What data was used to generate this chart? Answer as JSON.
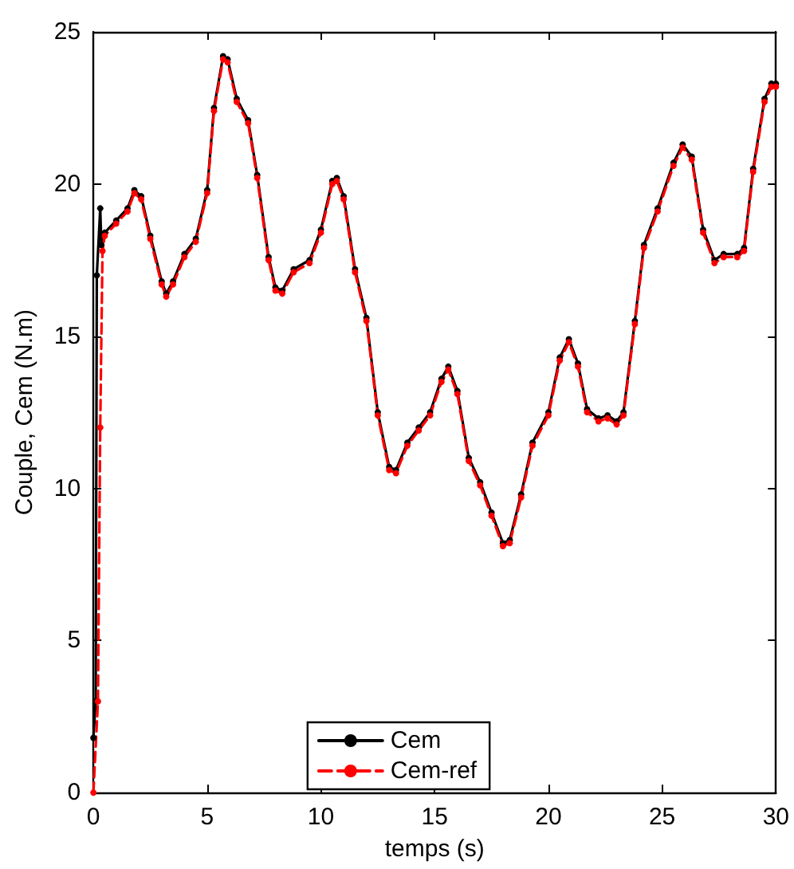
{
  "chart_data": {
    "type": "line",
    "xlabel": "temps (s)",
    "ylabel": "Couple, Cem (N.m)",
    "xlim": [
      0,
      30
    ],
    "ylim": [
      0,
      25
    ],
    "xticks": [
      0,
      5,
      10,
      15,
      20,
      25,
      30
    ],
    "yticks": [
      0,
      5,
      10,
      15,
      20,
      25
    ],
    "grid": false,
    "legend": "bottom",
    "marker": "circle",
    "series": [
      {
        "name": "Cem",
        "color": "#000000",
        "line_style": "solid",
        "x": [
          0,
          0.1,
          0.15,
          0.3,
          0.35,
          0.5,
          1.0,
          1.5,
          1.8,
          2.1,
          2.5,
          3.0,
          3.2,
          3.5,
          4.0,
          4.5,
          5.0,
          5.3,
          5.7,
          5.9,
          6.3,
          6.8,
          7.2,
          7.7,
          8.0,
          8.3,
          8.8,
          9.5,
          10.0,
          10.5,
          10.7,
          11.0,
          11.5,
          12.0,
          12.5,
          13.0,
          13.3,
          13.8,
          14.3,
          14.8,
          15.3,
          15.6,
          16.0,
          16.5,
          17.0,
          17.5,
          18.0,
          18.3,
          18.8,
          19.3,
          20.0,
          20.5,
          20.9,
          21.3,
          21.7,
          22.2,
          22.6,
          23.0,
          23.3,
          23.8,
          24.2,
          24.8,
          25.5,
          25.9,
          26.3,
          26.8,
          27.3,
          27.7,
          28.3,
          28.6,
          29.0,
          29.5,
          29.8,
          30
        ],
        "values": [
          1.8,
          3,
          17,
          19.2,
          18.0,
          18.4,
          18.8,
          19.2,
          19.8,
          19.6,
          18.3,
          16.8,
          16.4,
          16.8,
          17.7,
          18.2,
          19.8,
          22.5,
          24.2,
          24.1,
          22.8,
          22.1,
          20.3,
          17.6,
          16.6,
          16.5,
          17.2,
          17.5,
          18.5,
          20.1,
          20.2,
          19.6,
          17.2,
          15.6,
          12.5,
          10.7,
          10.6,
          11.5,
          12.0,
          12.5,
          13.6,
          14.0,
          13.2,
          11.0,
          10.2,
          9.2,
          8.2,
          8.3,
          9.8,
          11.5,
          12.5,
          14.3,
          14.9,
          14.1,
          12.6,
          12.3,
          12.4,
          12.2,
          12.5,
          15.5,
          18.0,
          19.2,
          20.7,
          21.3,
          20.9,
          18.5,
          17.5,
          17.7,
          17.7,
          17.9,
          20.5,
          22.8,
          23.3,
          23.3
        ]
      },
      {
        "name": "Cem-ref",
        "color": "#ff0000",
        "line_style": "dashed",
        "x": [
          0,
          0.2,
          0.3,
          0.4,
          0.5,
          1.0,
          1.5,
          1.8,
          2.1,
          2.5,
          3.0,
          3.2,
          3.5,
          4.0,
          4.5,
          5.0,
          5.3,
          5.7,
          5.9,
          6.3,
          6.8,
          7.2,
          7.7,
          8.0,
          8.3,
          8.8,
          9.5,
          10.0,
          10.5,
          10.7,
          11.0,
          11.5,
          12.0,
          12.5,
          13.0,
          13.3,
          13.8,
          14.3,
          14.8,
          15.3,
          15.6,
          16.0,
          16.5,
          17.0,
          17.5,
          18.0,
          18.3,
          18.8,
          19.3,
          20.0,
          20.5,
          20.9,
          21.3,
          21.7,
          22.2,
          22.6,
          23.0,
          23.3,
          23.8,
          24.2,
          24.8,
          25.5,
          25.9,
          26.3,
          26.8,
          27.3,
          27.7,
          28.3,
          28.6,
          29.0,
          29.5,
          29.8,
          30
        ],
        "values": [
          0,
          3,
          12,
          17.8,
          18.3,
          18.7,
          19.1,
          19.7,
          19.5,
          18.2,
          16.7,
          16.3,
          16.7,
          17.6,
          18.1,
          19.7,
          22.4,
          24.1,
          24.0,
          22.7,
          22.0,
          20.2,
          17.5,
          16.5,
          16.4,
          17.1,
          17.4,
          18.4,
          20.0,
          20.1,
          19.5,
          17.1,
          15.5,
          12.4,
          10.6,
          10.5,
          11.4,
          11.9,
          12.4,
          13.5,
          13.9,
          13.1,
          10.9,
          10.1,
          9.1,
          8.1,
          8.2,
          9.7,
          11.4,
          12.4,
          14.2,
          14.8,
          14.0,
          12.5,
          12.2,
          12.3,
          12.1,
          12.4,
          15.4,
          17.9,
          19.1,
          20.6,
          21.2,
          20.8,
          18.4,
          17.4,
          17.6,
          17.6,
          17.8,
          20.4,
          22.7,
          23.2,
          23.2
        ]
      }
    ]
  }
}
